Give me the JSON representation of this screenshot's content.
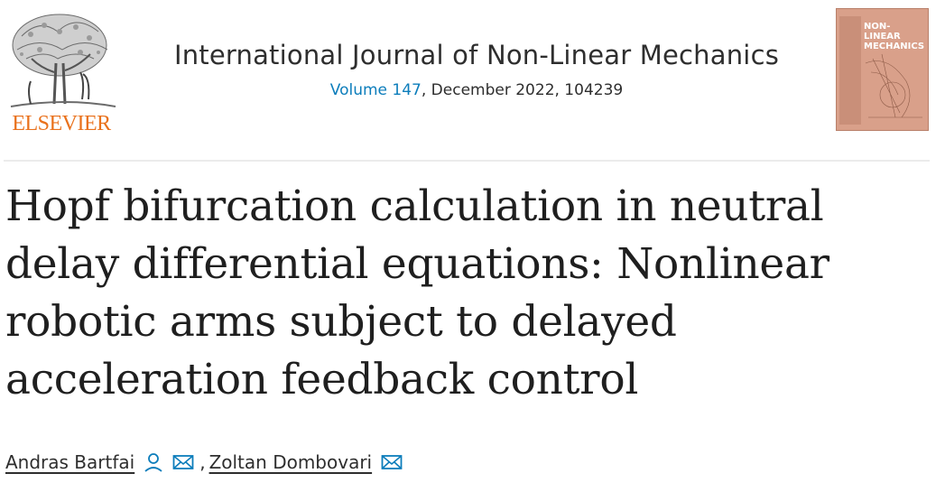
{
  "header": {
    "publisher": "ELSEVIER",
    "journal_title": "International Journal of Non-Linear Mechanics",
    "volume_label": "Volume 147",
    "issue_info": ", December 2022, 104239",
    "cover_title": "NON-LINEAR\nMECHANICS"
  },
  "article": {
    "title": "Hopf bifurcation calculation in neutral delay differential equations: Nonlinear robotic arms subject to delayed acceleration feedback control"
  },
  "authors": [
    {
      "name": "Andras Bartfai",
      "icons": [
        "person-icon",
        "email-icon"
      ]
    },
    {
      "name": "Zoltan Dombovari",
      "icons": [
        "email-icon"
      ]
    }
  ],
  "author_separator": ",",
  "colors": {
    "link": "#0c7dbb",
    "publisher": "#e9711c",
    "text": "#2e2e2e",
    "cover": "#d9a08a"
  }
}
